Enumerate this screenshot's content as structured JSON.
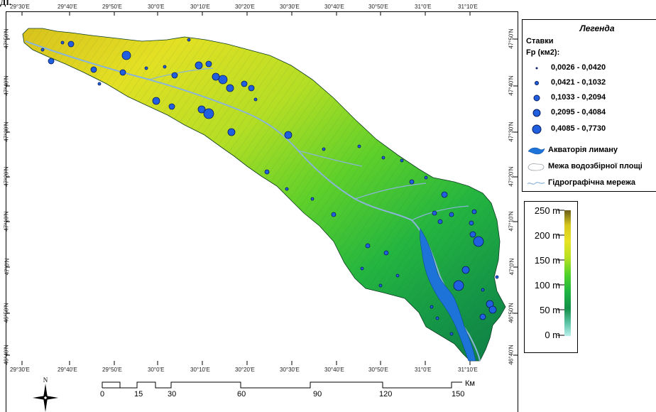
{
  "header_crop_text": "ДІ.",
  "map": {
    "longitude_ticks": [
      "29°30'E",
      "29°40'E",
      "29°50'E",
      "30°0'E",
      "30°10'E",
      "30°20'E",
      "30°30'E",
      "30°40'E",
      "30°50'E",
      "31°0'E",
      "31°10'E"
    ],
    "latitude_ticks": [
      "47°50'N",
      "47°40'N",
      "47°30'N",
      "47°20'N",
      "47°10'N",
      "47°0'N",
      "46°50'N",
      "46°40'N"
    ]
  },
  "legend": {
    "title": "Легенда",
    "subtitle_line1": "Ставки",
    "subtitle_line2": "Fp (км2):",
    "classes": [
      {
        "label": "0,0026 - 0,0420",
        "size": "smallest"
      },
      {
        "label": "0,0421 - 0,1032",
        "size": "small"
      },
      {
        "label": "0,1033 - 0,2094",
        "size": "medium"
      },
      {
        "label": "0,2095 - 0,4084",
        "size": "large"
      },
      {
        "label": "0,4085 - 0,7730",
        "size": "largest"
      }
    ],
    "items": [
      {
        "label": "Акваторія лиману",
        "icon": "estuary-water-icon"
      },
      {
        "label": "Межа водозбірної площі",
        "icon": "watershed-boundary-icon"
      },
      {
        "label": "Гідрографічна мережа",
        "icon": "river-network-icon"
      }
    ]
  },
  "elevation": {
    "labels": [
      "250 m",
      "200 m",
      "150 m",
      "100 m",
      "50 m",
      "0 m"
    ],
    "max_m": 250,
    "min_m": 0
  },
  "scale": {
    "labels": [
      "0",
      "15",
      "30",
      "60",
      "90",
      "120",
      "150"
    ],
    "unit": "Км"
  },
  "compass": {
    "letter": "N"
  },
  "colors": {
    "pond_fill": "#1f5fe0",
    "pond_stroke": "#0a1a5a",
    "estuary": "#1e73d8",
    "river": "#8ab4d8"
  }
}
